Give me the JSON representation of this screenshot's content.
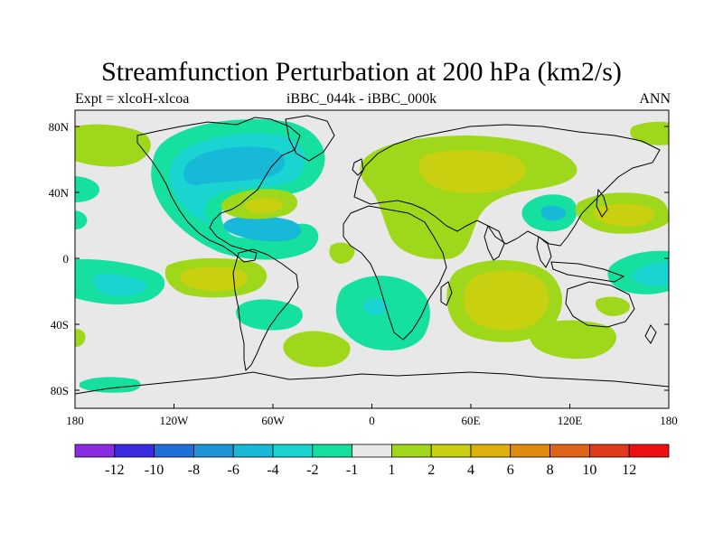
{
  "plot": {
    "title": "Streamfunction Perturbation at 200 hPa (km2/s)",
    "left_label": "Expt = xlcoH-xlcoa",
    "center_label": "iBBC_044k - iBBC_000k",
    "right_label": "ANN",
    "lat_ticks": [
      "80N",
      "40N",
      "0",
      "40S",
      "80S"
    ],
    "lon_ticks": [
      "180",
      "120W",
      "60W",
      "0",
      "60E",
      "120E",
      "180"
    ]
  },
  "colorbar": {
    "colors": [
      "#8a2be2",
      "#3a2be0",
      "#1f6fd6",
      "#1f95d8",
      "#17b8d8",
      "#19d4d0",
      "#16e0a0",
      "#e8e8e8",
      "#9fd81a",
      "#c8d010",
      "#e0b00a",
      "#e08a10",
      "#e06418",
      "#e03a1a",
      "#ee1010"
    ],
    "labels": [
      "-12",
      "-10",
      "-8",
      "-6",
      "-4",
      "-2",
      "-1",
      "1",
      "2",
      "4",
      "6",
      "8",
      "10",
      "12"
    ]
  },
  "colors": {
    "background": "#e8e8e8",
    "neg1": "#16e0a0",
    "neg2": "#19d4d0",
    "neg4": "#17b8d8",
    "neg6": "#1f95d8",
    "pos1": "#9fd81a",
    "pos2": "#c8d010",
    "pos4": "#e0b00a"
  }
}
